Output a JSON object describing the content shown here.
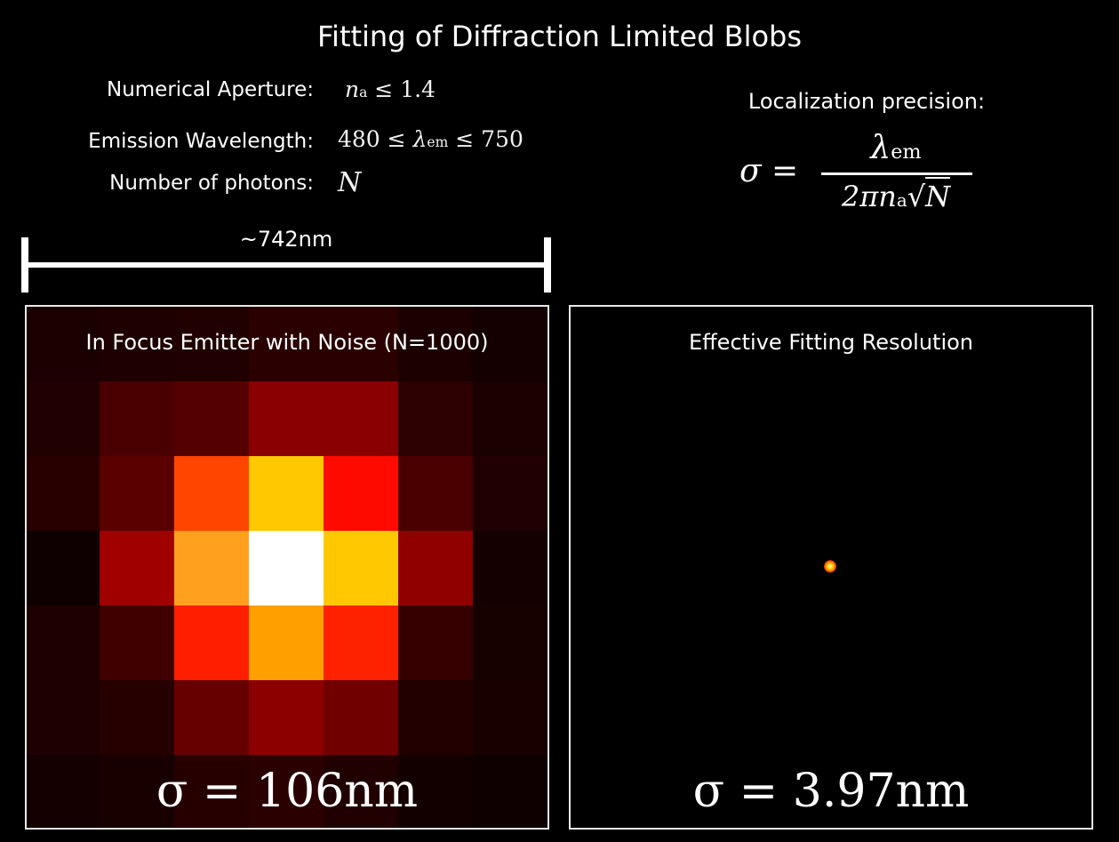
{
  "title": "Fitting of Diffraction Limited Blobs",
  "parameters": [
    {
      "label": "Numerical Aperture:",
      "value": "n_a ≤ 1.4"
    },
    {
      "label": "Emission Wavelength:",
      "value": "480 ≤ λ_em ≤ 750"
    },
    {
      "label": "Number of photons:",
      "value": "N"
    }
  ],
  "precision": {
    "label": "Localization precision:",
    "formula": "σ = λ_em / (2π n_a √N)",
    "sigma": "σ",
    "eq": "=",
    "num_main": "λ",
    "num_sub": "em",
    "den_pre": "2πn",
    "den_sub": "a",
    "den_root": "√",
    "den_N": "N"
  },
  "scale_bar": {
    "label": "~742nm"
  },
  "left_panel": {
    "title": "In Focus Emitter with Noise (N=1000)",
    "sigma_label": "σ = 106nm",
    "sigma_nm": 106,
    "photons": 1000,
    "pixels": [
      [
        "#1a0000",
        "#1e0000",
        "#200000",
        "#2a0000",
        "#2a0000",
        "#1c0000",
        "#140000"
      ],
      [
        "#200000",
        "#4a0000",
        "#550000",
        "#8a0000",
        "#8a0000",
        "#2c0000",
        "#1a0000"
      ],
      [
        "#280000",
        "#5a0000",
        "#ff4500",
        "#ffc800",
        "#ff0a00",
        "#4a0000",
        "#200000"
      ],
      [
        "#0e0000",
        "#a00000",
        "#ffa01e",
        "#ffffff",
        "#ffc800",
        "#900000",
        "#140000"
      ],
      [
        "#1e0000",
        "#400000",
        "#ff1e00",
        "#ffa000",
        "#ff2200",
        "#360000",
        "#160000"
      ],
      [
        "#1e0000",
        "#260000",
        "#660000",
        "#8c0000",
        "#700000",
        "#220000",
        "#180000"
      ],
      [
        "#140000",
        "#180000",
        "#260000",
        "#2a0000",
        "#200000",
        "#120000",
        "#0e0000"
      ]
    ]
  },
  "right_panel": {
    "title": "Effective Fitting Resolution",
    "sigma_label": "σ = 3.97nm",
    "sigma_nm": 3.97
  }
}
